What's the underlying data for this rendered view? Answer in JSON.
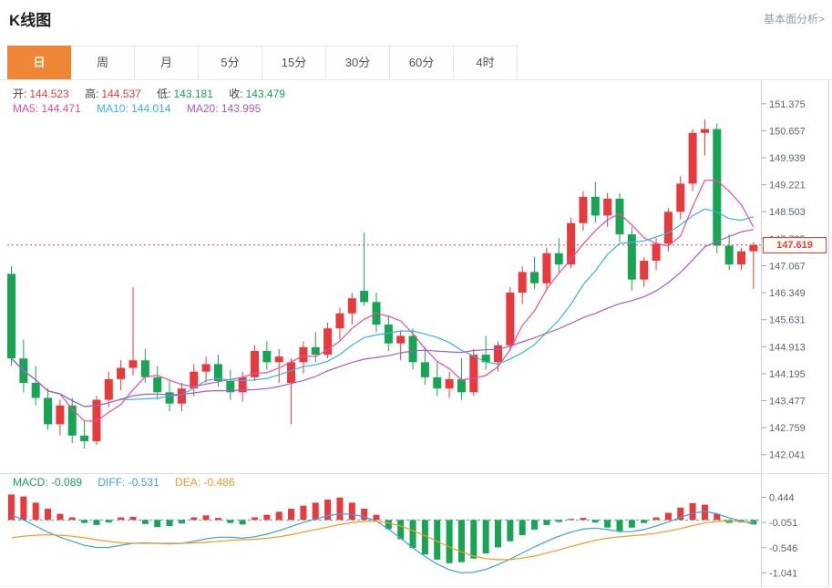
{
  "header": {
    "title": "K线图",
    "link": "基本面分析>"
  },
  "tabs": [
    {
      "label": "日",
      "active": true
    },
    {
      "label": "周",
      "active": false
    },
    {
      "label": "月",
      "active": false
    },
    {
      "label": "5分",
      "active": false
    },
    {
      "label": "15分",
      "active": false
    },
    {
      "label": "30分",
      "active": false
    },
    {
      "label": "60分",
      "active": false
    },
    {
      "label": "4时",
      "active": false
    }
  ],
  "legend": {
    "ohlc": [
      {
        "label": "开:",
        "value": "144.523"
      },
      {
        "label": "高:",
        "value": "144.537"
      },
      {
        "label": "低:",
        "value": "143.181"
      },
      {
        "label": "收:",
        "value": "143.479"
      }
    ],
    "ma": [
      {
        "label": "MA5:",
        "value": "144.471"
      },
      {
        "label": "MA10:",
        "value": "144.014"
      },
      {
        "label": "MA20:",
        "value": "143.995"
      }
    ],
    "macd": [
      {
        "label": "MACD:",
        "value": "-0.089"
      },
      {
        "label": "DIFF:",
        "value": "-0.531"
      },
      {
        "label": "DEA:",
        "value": "-0.486"
      }
    ]
  },
  "price_tag": "147.619",
  "colors": {
    "up": "#e8393d",
    "down": "#17a554",
    "ma5": "#ec4aa0",
    "ma10": "#35b3e6",
    "ma20": "#a85bc6",
    "diff": "#3d9fe0",
    "dea": "#f59a23",
    "price_line": "#f03b3b",
    "zero_line": "#2fb3a3",
    "axis_text": "#5a6470",
    "grid": "#cfd4da",
    "tab_accent": "#ef8636"
  },
  "chart_data": {
    "type": "candlestick",
    "title": "K线图",
    "timeframe": "日",
    "current_price": 147.619,
    "ylim": [
      141.55,
      152.0
    ],
    "y_ticks": [
      151.375,
      150.657,
      149.939,
      149.221,
      148.503,
      147.785,
      147.067,
      146.349,
      145.631,
      144.913,
      144.195,
      143.477,
      142.759,
      142.041
    ],
    "ma_periods": [
      5,
      10,
      20
    ],
    "candles": [
      [
        146.85,
        147.05,
        144.4,
        144.6
      ],
      [
        144.6,
        145.1,
        143.7,
        143.95
      ],
      [
        143.95,
        144.4,
        143.35,
        143.55
      ],
      [
        143.55,
        143.8,
        142.7,
        142.85
      ],
      [
        142.85,
        143.5,
        142.55,
        143.35
      ],
      [
        143.35,
        143.55,
        142.35,
        142.55
      ],
      [
        142.55,
        142.95,
        142.2,
        142.4
      ],
      [
        142.4,
        143.6,
        142.3,
        143.5
      ],
      [
        143.5,
        144.25,
        143.3,
        144.05
      ],
      [
        144.05,
        144.55,
        143.75,
        144.35
      ],
      [
        144.35,
        146.5,
        144.15,
        144.55
      ],
      [
        144.55,
        144.85,
        143.95,
        144.1
      ],
      [
        144.1,
        144.4,
        143.5,
        143.7
      ],
      [
        143.7,
        144.0,
        143.2,
        143.4
      ],
      [
        143.4,
        143.95,
        143.2,
        143.8
      ],
      [
        143.8,
        144.45,
        143.6,
        144.25
      ],
      [
        144.25,
        144.65,
        143.95,
        144.45
      ],
      [
        144.45,
        144.7,
        143.85,
        144.0
      ],
      [
        144.0,
        144.3,
        143.5,
        143.7
      ],
      [
        143.7,
        144.25,
        143.45,
        144.1
      ],
      [
        144.1,
        144.95,
        144.0,
        144.8
      ],
      [
        144.8,
        145.05,
        144.3,
        144.5
      ],
      [
        144.5,
        144.85,
        143.95,
        144.65
      ],
      [
        143.95,
        144.6,
        142.85,
        144.5
      ],
      [
        144.5,
        145.05,
        144.2,
        144.9
      ],
      [
        144.9,
        145.3,
        144.5,
        144.7
      ],
      [
        144.7,
        145.55,
        144.6,
        145.4
      ],
      [
        145.4,
        145.95,
        145.1,
        145.8
      ],
      [
        145.8,
        146.35,
        145.5,
        146.2
      ],
      [
        146.4,
        147.95,
        146.0,
        146.1
      ],
      [
        146.1,
        146.35,
        145.3,
        145.5
      ],
      [
        145.5,
        145.75,
        144.8,
        145.0
      ],
      [
        145.0,
        145.35,
        144.55,
        145.2
      ],
      [
        145.2,
        145.4,
        144.3,
        144.5
      ],
      [
        144.5,
        144.9,
        143.9,
        144.1
      ],
      [
        144.1,
        144.5,
        143.6,
        143.8
      ],
      [
        143.8,
        144.25,
        143.55,
        144.05
      ],
      [
        144.05,
        144.6,
        143.5,
        143.7
      ],
      [
        143.7,
        144.85,
        143.6,
        144.7
      ],
      [
        144.7,
        145.2,
        144.3,
        144.5
      ],
      [
        144.5,
        145.05,
        144.25,
        144.95
      ],
      [
        144.95,
        146.5,
        144.8,
        146.35
      ],
      [
        146.35,
        147.05,
        146.05,
        146.9
      ],
      [
        146.9,
        147.3,
        146.45,
        146.6
      ],
      [
        146.6,
        147.55,
        146.4,
        147.4
      ],
      [
        147.4,
        147.8,
        146.9,
        147.1
      ],
      [
        147.1,
        148.35,
        147.0,
        148.2
      ],
      [
        148.2,
        149.05,
        148.0,
        148.9
      ],
      [
        148.9,
        149.3,
        148.2,
        148.4
      ],
      [
        148.4,
        149.0,
        148.1,
        148.85
      ],
      [
        148.85,
        149.0,
        147.7,
        147.9
      ],
      [
        147.9,
        148.1,
        146.4,
        146.7
      ],
      [
        146.7,
        147.3,
        146.5,
        147.2
      ],
      [
        147.2,
        147.8,
        146.95,
        147.65
      ],
      [
        147.65,
        148.6,
        147.45,
        148.5
      ],
      [
        148.5,
        149.45,
        148.3,
        149.25
      ],
      [
        149.25,
        150.7,
        149.05,
        150.6
      ],
      [
        150.6,
        150.95,
        150.0,
        150.7
      ],
      [
        150.7,
        150.85,
        147.4,
        147.6
      ],
      [
        147.6,
        147.9,
        146.95,
        147.1
      ],
      [
        147.1,
        147.55,
        146.95,
        147.45
      ],
      [
        147.45,
        147.7,
        146.45,
        147.62
      ]
    ],
    "macd": {
      "y_ticks": [
        0.444,
        -0.051,
        -0.546,
        -1.041
      ],
      "ylim": [
        -1.32,
        0.92
      ],
      "hist": [
        0.5,
        0.46,
        0.34,
        0.22,
        0.12,
        0.05,
        -0.06,
        -0.1,
        -0.05,
        0.05,
        0.06,
        -0.08,
        -0.14,
        -0.12,
        -0.07,
        0.05,
        0.09,
        0.04,
        -0.06,
        -0.09,
        0.05,
        0.1,
        0.16,
        0.22,
        0.28,
        0.34,
        0.4,
        0.44,
        0.34,
        0.22,
        0.1,
        -0.18,
        -0.38,
        -0.55,
        -0.68,
        -0.78,
        -0.85,
        -0.83,
        -0.76,
        -0.66,
        -0.54,
        -0.42,
        -0.3,
        -0.19,
        -0.1,
        -0.04,
        0.02,
        0.04,
        -0.05,
        -0.15,
        -0.22,
        -0.15,
        -0.06,
        0.05,
        0.14,
        0.24,
        0.33,
        0.3,
        0.12,
        -0.06,
        -0.05,
        -0.09
      ],
      "diff": [
        0.1,
        0.0,
        -0.12,
        -0.24,
        -0.34,
        -0.42,
        -0.5,
        -0.54,
        -0.54,
        -0.5,
        -0.46,
        -0.45,
        -0.46,
        -0.47,
        -0.46,
        -0.42,
        -0.37,
        -0.34,
        -0.34,
        -0.36,
        -0.33,
        -0.28,
        -0.21,
        -0.13,
        -0.05,
        0.02,
        0.08,
        0.12,
        0.11,
        0.06,
        -0.02,
        -0.18,
        -0.36,
        -0.55,
        -0.72,
        -0.87,
        -0.98,
        -1.04,
        -1.03,
        -0.97,
        -0.88,
        -0.77,
        -0.65,
        -0.53,
        -0.42,
        -0.32,
        -0.24,
        -0.18,
        -0.16,
        -0.19,
        -0.23,
        -0.23,
        -0.19,
        -0.12,
        -0.04,
        0.05,
        0.13,
        0.17,
        0.12,
        0.04,
        -0.02,
        -0.08
      ],
      "dea": [
        -0.35,
        -0.32,
        -0.3,
        -0.29,
        -0.3,
        -0.32,
        -0.35,
        -0.39,
        -0.42,
        -0.45,
        -0.46,
        -0.46,
        -0.46,
        -0.46,
        -0.46,
        -0.45,
        -0.44,
        -0.42,
        -0.4,
        -0.39,
        -0.38,
        -0.36,
        -0.33,
        -0.29,
        -0.24,
        -0.19,
        -0.14,
        -0.09,
        -0.05,
        -0.03,
        -0.03,
        -0.06,
        -0.12,
        -0.21,
        -0.31,
        -0.42,
        -0.53,
        -0.63,
        -0.71,
        -0.76,
        -0.78,
        -0.78,
        -0.75,
        -0.71,
        -0.65,
        -0.59,
        -0.52,
        -0.46,
        -0.4,
        -0.36,
        -0.33,
        -0.31,
        -0.29,
        -0.26,
        -0.22,
        -0.17,
        -0.11,
        -0.06,
        -0.03,
        -0.02,
        -0.03,
        -0.04
      ]
    }
  }
}
